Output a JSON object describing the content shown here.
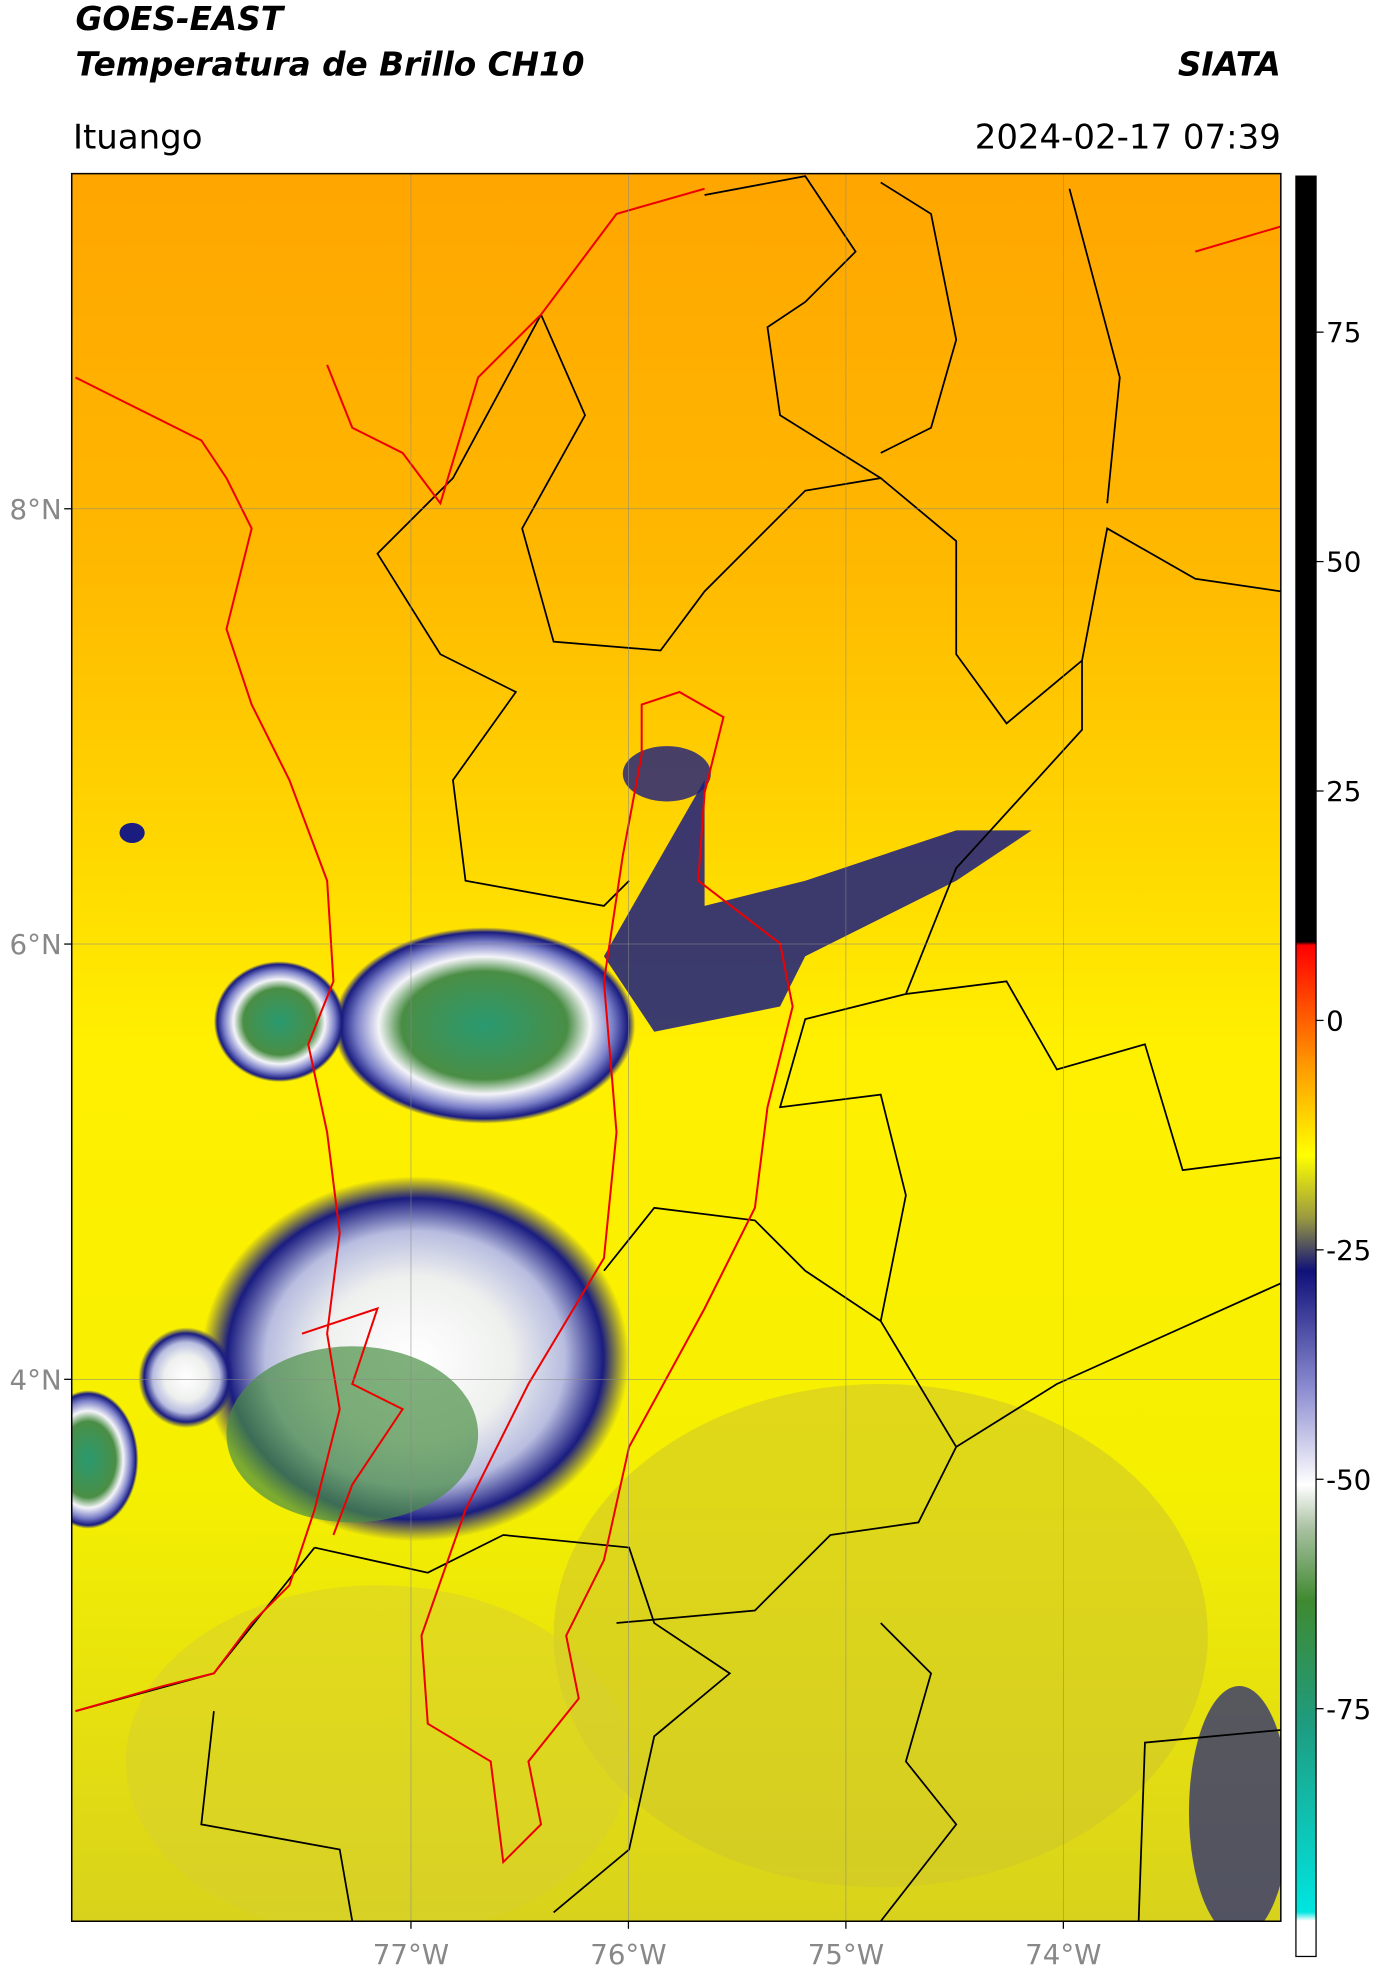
{
  "header": {
    "title": "GOES-EAST",
    "subtitle": "Temperatura de Brillo CH10",
    "source": "SIATA",
    "location": "Ituango",
    "timestamp": "2024-02-17 07:39"
  },
  "map": {
    "xlim": [
      -78.56,
      -73.0
    ],
    "ylim": [
      1.51,
      9.54
    ],
    "xticks": [
      {
        "value": -77,
        "label": "77°W"
      },
      {
        "value": -76,
        "label": "76°W"
      },
      {
        "value": -75,
        "label": "75°W"
      },
      {
        "value": -74,
        "label": "74°W"
      }
    ],
    "yticks": [
      {
        "value": 8,
        "label": "8°N"
      },
      {
        "value": 6,
        "label": "6°N"
      },
      {
        "value": 4,
        "label": "4°N"
      }
    ],
    "grid": true
  },
  "colorbar": {
    "ylim": [
      -102,
      92
    ],
    "yticks": [
      75,
      50,
      25,
      0,
      -25,
      -50,
      -75
    ]
  }
}
